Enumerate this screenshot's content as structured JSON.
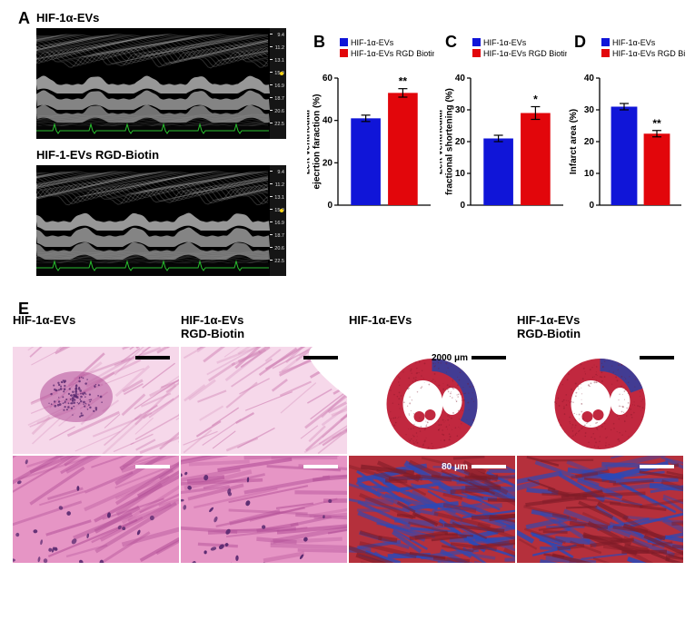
{
  "panelLabels": {
    "A": "A",
    "B": "B",
    "C": "C",
    "D": "D",
    "E": "E"
  },
  "echo": {
    "title1": "HIF-1α-EVs",
    "title2": "HIF-1-EVs RGD-Biotin",
    "ruler": [
      "9.4",
      "11.2",
      "13.1",
      "15.0",
      "16.9",
      "18.7",
      "20.6",
      "22.5"
    ],
    "bg": "#000000",
    "wave_color": "#b8b8b8",
    "ecg_color": "#29c02e"
  },
  "legend": {
    "items": [
      {
        "label": "HIF-1α-EVs",
        "color": "#1015d8"
      },
      {
        "label": "HIF-1α-EVs RGD Biotin",
        "color": "#e2060b"
      }
    ]
  },
  "chartB": {
    "ylabel": "Left ventricular\nejecrtion faraction (%)",
    "ylim": [
      0,
      60
    ],
    "ytick_step": 20,
    "values": [
      41,
      53
    ],
    "err": [
      1.5,
      2
    ],
    "colors": [
      "#1015d8",
      "#e2060b"
    ],
    "sig": "**",
    "sig_index": 1
  },
  "chartC": {
    "ylabel": "Left ventricular\nfractional shortening (%)",
    "ylim": [
      0,
      40
    ],
    "ytick_step": 10,
    "values": [
      21,
      29
    ],
    "err": [
      1,
      2
    ],
    "colors": [
      "#1015d8",
      "#e2060b"
    ],
    "sig": "*",
    "sig_index": 1
  },
  "chartD": {
    "ylabel": "Infarct area (%)",
    "ylim": [
      0,
      40
    ],
    "ytick_step": 10,
    "values": [
      31,
      22.5
    ],
    "err": [
      1,
      1
    ],
    "colors": [
      "#1015d8",
      "#e2060b"
    ],
    "sig": "**",
    "sig_index": 1
  },
  "panelE": {
    "headers": [
      "HIF-1α-EVs",
      "HIF-1α-EVs\nRGD-Biotin",
      "HIF-1α-EVs",
      "HIF-1α-EVs\nRGD-Biotin"
    ],
    "tiles": [
      {
        "type": "he_low",
        "sbcolor": "#000",
        "sbtop": true
      },
      {
        "type": "he_low",
        "sbcolor": "#000",
        "sbtop": true
      },
      {
        "type": "masson_whole",
        "sbcolor": "#000",
        "sbtop": true,
        "sbtext": "2000 μm",
        "cross": true
      },
      {
        "type": "masson_whole",
        "sbcolor": "#000",
        "sbtop": true,
        "cross": true
      },
      {
        "type": "he_hi",
        "sbcolor": "#fff",
        "sbtop": true
      },
      {
        "type": "he_hi",
        "sbcolor": "#fff",
        "sbtop": true
      },
      {
        "type": "masson_hi",
        "sbcolor": "#fff",
        "sbtop": true,
        "sbtext": "80 μm"
      },
      {
        "type": "masson_hi",
        "sbcolor": "#fff",
        "sbtop": true
      }
    ],
    "colors": {
      "he_bg": "#e695c5",
      "he_dark": "#b24f97",
      "he_nuc": "#5a2a70",
      "he_low_bg": "#f6d8ea",
      "he_low_fiber": "#d083b5",
      "masson_red": "#c1283f",
      "masson_blue": "#2b3fa2",
      "masson_bg": "#ffffff",
      "masson_hi_red": "#b5303c",
      "masson_hi_blue": "#2c49b6"
    }
  }
}
